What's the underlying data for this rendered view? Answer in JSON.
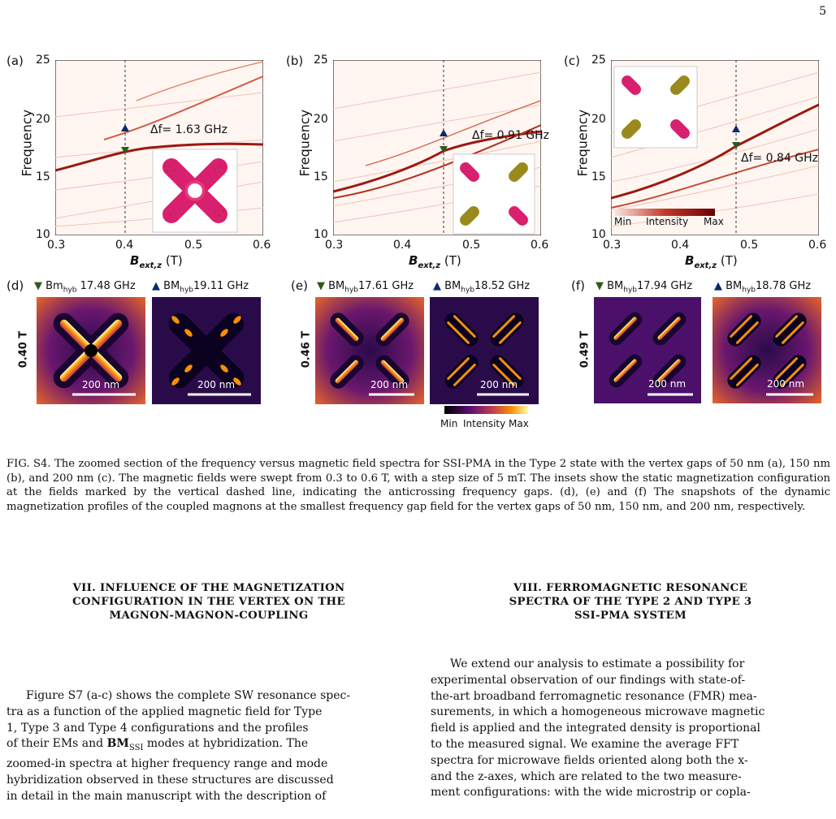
{
  "page_number": "5",
  "panels_top": [
    {
      "id": "a",
      "label": "(a)",
      "gap_text": "Δf= 1.63 GHz"
    },
    {
      "id": "b",
      "label": "(b)",
      "gap_text": "Δf= 0.91 GHz"
    },
    {
      "id": "c",
      "label": "(c)",
      "gap_text": "Δf= 0.84 GHz"
    }
  ],
  "axes": {
    "ylabel": "Frequency",
    "xlabel_main": "B",
    "xlabel_sub": "ext,z",
    "xlabel_unit": " (T)",
    "yticks": [
      "25",
      "20",
      "15",
      "10"
    ],
    "xticks": [
      "0.3",
      "0.4",
      "0.5",
      "0.6"
    ]
  },
  "colorbar_c": {
    "min": "Min",
    "label": "Intensity",
    "max": "Max"
  },
  "panels_bottom": [
    {
      "id": "d",
      "label": "(d)",
      "field": "0.40 T",
      "low_prefix": "Bm",
      "low_sub": "hyb",
      "low_freq": " 17.48 GHz",
      "high_prefix": "BM",
      "high_sub": "hyb",
      "high_freq": "19.11 GHz",
      "scale": "200 nm"
    },
    {
      "id": "e",
      "label": "(e)",
      "field": "0.46 T",
      "low_prefix": "BM",
      "low_sub": "hyb",
      "low_freq": "17.61 GHz",
      "high_prefix": "BM",
      "high_sub": "hyb",
      "high_freq": "18.52 GHz",
      "scale": "200 nm"
    },
    {
      "id": "f",
      "label": "(f)",
      "field": "0.49 T",
      "low_prefix": "BM",
      "low_sub": "hyb",
      "low_freq": "17.94 GHz",
      "high_prefix": "BM",
      "high_sub": "hyb",
      "high_freq": "18.78 GHz",
      "scale": "200 nm"
    }
  ],
  "colorbar_bottom": {
    "min": "Min",
    "label": "Intensity",
    "max": "Max"
  },
  "caption": "FIG. S4. The zoomed section of the frequency versus magnetic field spectra for SSI-PMA in the Type 2 state with the vertex gaps of 50 nm (a), 150 nm (b), and 200 nm (c). The magnetic fields were swept from 0.3 to 0.6 T, with a step size of 5 mT. The insets show the static magnetization configuration at the fields marked by the vertical dashed line, indicating the anticrossing frequency gaps. (d), (e) and (f) The snapshots of the dynamic magnetization profiles of the coupled magnons at the smallest frequency gap field for the vertex gaps of 50 nm, 150 nm, and 200 nm, respectively.",
  "section7": {
    "heading_1": "VII.   INFLUENCE OF THE MAGNETIZATION",
    "heading_2": "CONFIGURATION IN THE VERTEX ON THE",
    "heading_3": "MAGNON-MAGNON-COUPLING",
    "p1": "Figure S7 (a-c) shows the complete SW resonance spec-",
    "p2": "tra as a function of the applied magnetic field for Type",
    "p3": "1, Type 3 and Type 4 configurations and the profiles",
    "p4a": "of their EMs and ",
    "p4b": "BM",
    "p4c": "SSI",
    "p4d": " modes at hybridization.  The",
    "p5": "zoomed-in spectra at higher frequency range and mode",
    "p6": "hybridization observed in these structures are discussed",
    "p7": "in detail in the main manuscript with the description of"
  },
  "section8": {
    "heading_1": "VIII.   FERROMAGNETIC RESONANCE",
    "heading_2": "SPECTRA OF THE TYPE 2 AND TYPE 3",
    "heading_3": "SSI-PMA SYSTEM",
    "l1": "We extend our analysis to estimate a possibility for",
    "l2": "experimental observation of our findings with state-of-",
    "l3": "the-art broadband ferromagnetic resonance (FMR) mea-",
    "l4": "surements, in which a homogeneous microwave magnetic",
    "l5": "field is applied and the integrated density is proportional",
    "l6": "to the measured signal.  We examine the average FFT",
    "l7": "spectra for microwave fields oriented along both the x-",
    "l8": "and the z-axes, which are related to the two measure-",
    "l9": "ment configurations: with the wide microstrip or copla-"
  }
}
